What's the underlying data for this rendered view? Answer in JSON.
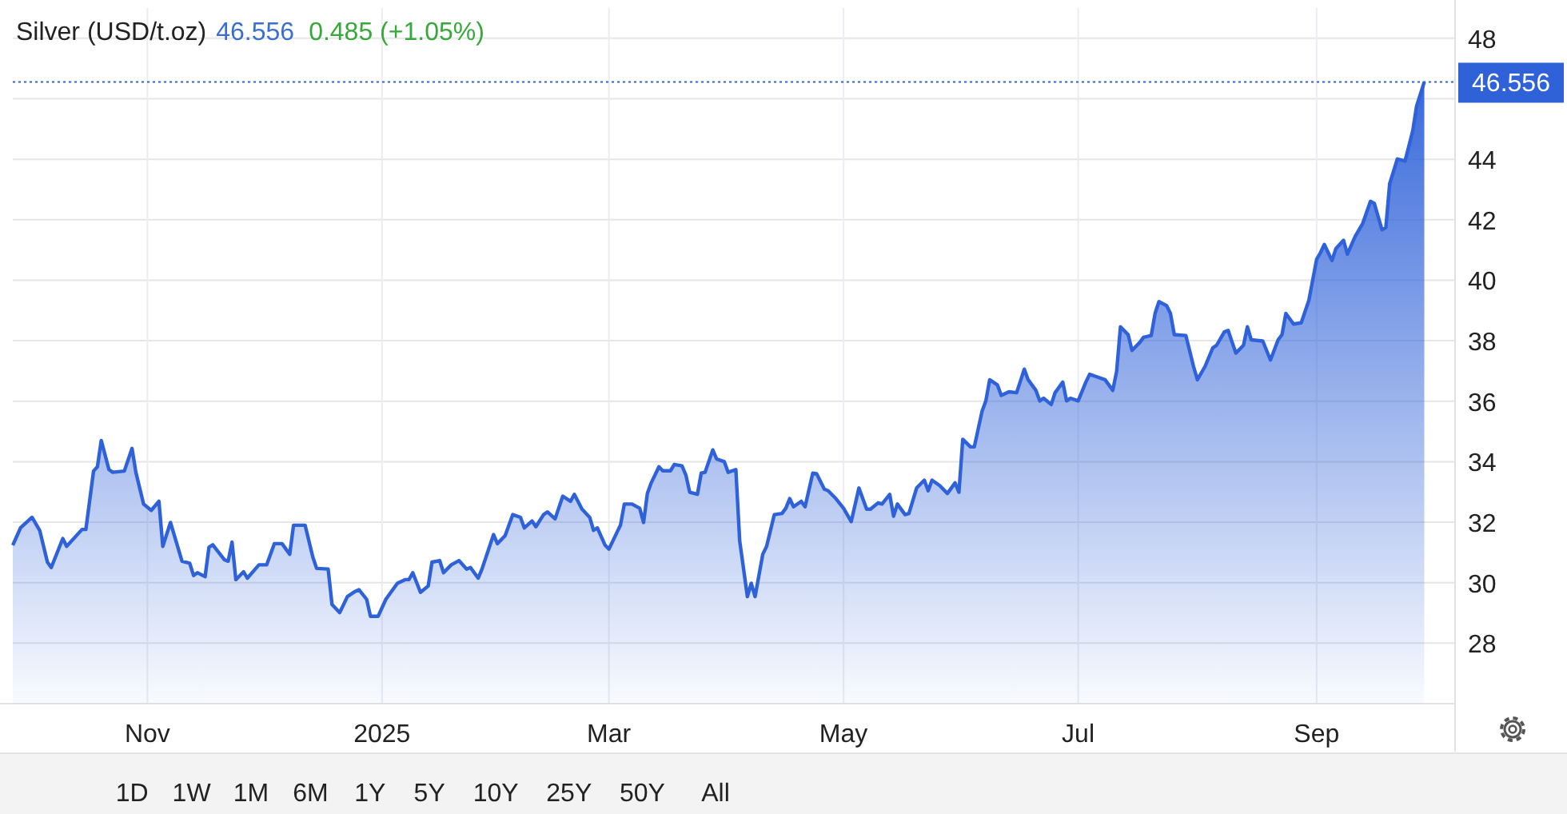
{
  "chart_data": {
    "type": "area",
    "title": "Silver (USD/t.oz)",
    "annotations": [
      "46.556",
      "0.485 (+1.05%)",
      "1D",
      "1W",
      "1M",
      "6M",
      "1Y",
      "5Y",
      "10Y",
      "25Y",
      "50Y",
      "All"
    ],
    "x": [
      "2024-09-27",
      "2024-09-29",
      "2024-10-02",
      "2024-10-04",
      "2024-10-06",
      "2024-10-07",
      "2024-10-10",
      "2024-10-11",
      "2024-10-15",
      "2024-10-16",
      "2024-10-18",
      "2024-10-19",
      "2024-10-20",
      "2024-10-22",
      "2024-10-23",
      "2024-10-26",
      "2024-10-28",
      "2024-10-29",
      "2024-10-31",
      "2024-11-02",
      "2024-11-04",
      "2024-11-05",
      "2024-11-07",
      "2024-11-10",
      "2024-11-12",
      "2024-11-13",
      "2024-11-14",
      "2024-11-16",
      "2024-11-17",
      "2024-11-18",
      "2024-11-21",
      "2024-11-22",
      "2024-11-23",
      "2024-11-24",
      "2024-11-26",
      "2024-11-27",
      "2024-11-30",
      "2024-12-02",
      "2024-12-04",
      "2024-12-06",
      "2024-12-08",
      "2024-12-09",
      "2024-12-12",
      "2024-12-14",
      "2024-12-15",
      "2024-12-18",
      "2024-12-19",
      "2024-12-21",
      "2024-12-23",
      "2024-12-25",
      "2024-12-26",
      "2024-12-28",
      "2024-12-29",
      "2024-12-31",
      "2025-01-02",
      "2025-01-03",
      "2025-01-05",
      "2025-01-07",
      "2025-01-08",
      "2025-01-09",
      "2025-01-11",
      "2025-01-13",
      "2025-01-14",
      "2025-01-16",
      "2025-01-17",
      "2025-01-19",
      "2025-01-21",
      "2025-01-23",
      "2025-01-24",
      "2025-01-26",
      "2025-01-27",
      "2025-01-30",
      "2025-01-31",
      "2025-02-02",
      "2025-02-04",
      "2025-02-06",
      "2025-02-07",
      "2025-02-09",
      "2025-02-10",
      "2025-02-12",
      "2025-02-13",
      "2025-02-15",
      "2025-02-17",
      "2025-02-19",
      "2025-02-20",
      "2025-02-22",
      "2025-02-24",
      "2025-02-25",
      "2025-02-26",
      "2025-02-28",
      "2025-03-01",
      "2025-03-03",
      "2025-03-04",
      "2025-03-05",
      "2025-03-07",
      "2025-03-09",
      "2025-03-10",
      "2025-03-11",
      "2025-03-12",
      "2025-03-14",
      "2025-03-15",
      "2025-03-17",
      "2025-03-18",
      "2025-03-20",
      "2025-03-21",
      "2025-03-22",
      "2025-03-24",
      "2025-03-25",
      "2025-03-26",
      "2025-03-28",
      "2025-03-29",
      "2025-03-31",
      "2025-04-01",
      "2025-04-03",
      "2025-04-04",
      "2025-04-06",
      "2025-04-07",
      "2025-04-08",
      "2025-04-10",
      "2025-04-11",
      "2025-04-13",
      "2025-04-15",
      "2025-04-16",
      "2025-04-17",
      "2025-04-18",
      "2025-04-20",
      "2025-04-21",
      "2025-04-23",
      "2025-04-24",
      "2025-04-26",
      "2025-04-27",
      "2025-04-29",
      "2025-05-01",
      "2025-05-03",
      "2025-05-05",
      "2025-05-07",
      "2025-05-08",
      "2025-05-10",
      "2025-05-11",
      "2025-05-13",
      "2025-05-14",
      "2025-05-15",
      "2025-05-17",
      "2025-05-18",
      "2025-05-20",
      "2025-05-22",
      "2025-05-23",
      "2025-05-24",
      "2025-05-26",
      "2025-05-28",
      "2025-05-30",
      "2025-05-31",
      "2025-06-01",
      "2025-06-03",
      "2025-06-04",
      "2025-06-06",
      "2025-06-07",
      "2025-06-08",
      "2025-06-10",
      "2025-06-11",
      "2025-06-13",
      "2025-06-15",
      "2025-06-17",
      "2025-06-18",
      "2025-06-20",
      "2025-06-21",
      "2025-06-22",
      "2025-06-24",
      "2025-06-25",
      "2025-06-27",
      "2025-06-28",
      "2025-06-29",
      "2025-07-01",
      "2025-07-03",
      "2025-07-04",
      "2025-07-06",
      "2025-07-08",
      "2025-07-10",
      "2025-07-11",
      "2025-07-12",
      "2025-07-14",
      "2025-07-15",
      "2025-07-17",
      "2025-07-18",
      "2025-07-20",
      "2025-07-21",
      "2025-07-22",
      "2025-07-24",
      "2025-07-25",
      "2025-07-26",
      "2025-07-29",
      "2025-07-31",
      "2025-08-01",
      "2025-08-03",
      "2025-08-05",
      "2025-08-06",
      "2025-08-08",
      "2025-08-09",
      "2025-08-11",
      "2025-08-13",
      "2025-08-14",
      "2025-08-15",
      "2025-08-18",
      "2025-08-20",
      "2025-08-22",
      "2025-08-23",
      "2025-08-24",
      "2025-08-26",
      "2025-08-28",
      "2025-08-30",
      "2025-09-01",
      "2025-09-02",
      "2025-09-03",
      "2025-09-05",
      "2025-09-06",
      "2025-09-08",
      "2025-09-09",
      "2025-09-11",
      "2025-09-13",
      "2025-09-15",
      "2025-09-16",
      "2025-09-18",
      "2025-09-19",
      "2025-09-20",
      "2025-09-22",
      "2025-09-24",
      "2025-09-26",
      "2025-09-27",
      "2025-09-29"
    ],
    "series": [
      {
        "color": "#2f62d9",
        "values": [
          31.24,
          31.81,
          32.16,
          31.73,
          30.68,
          30.5,
          31.46,
          31.2,
          31.76,
          31.76,
          33.69,
          33.83,
          34.7,
          33.74,
          33.65,
          33.69,
          34.44,
          33.65,
          32.6,
          32.39,
          32.69,
          31.2,
          31.99,
          30.71,
          30.64,
          30.24,
          30.33,
          30.2,
          31.17,
          31.25,
          30.76,
          30.71,
          31.34,
          30.1,
          30.36,
          30.15,
          30.59,
          30.59,
          31.29,
          31.29,
          30.94,
          31.9,
          31.9,
          30.85,
          30.47,
          30.45,
          29.28,
          29.01,
          29.54,
          29.71,
          29.77,
          29.45,
          28.89,
          28.89,
          29.45,
          29.63,
          29.98,
          30.1,
          30.1,
          30.33,
          29.68,
          29.89,
          30.68,
          30.73,
          30.33,
          30.59,
          30.73,
          30.45,
          30.5,
          30.15,
          30.45,
          31.59,
          31.29,
          31.55,
          32.25,
          32.16,
          31.81,
          32.04,
          31.85,
          32.25,
          32.34,
          32.11,
          32.86,
          32.69,
          32.92,
          32.43,
          32.16,
          31.73,
          31.81,
          31.24,
          31.11,
          31.64,
          31.9,
          32.6,
          32.6,
          32.46,
          31.99,
          32.95,
          33.3,
          33.83,
          33.7,
          33.7,
          33.91,
          33.86,
          33.56,
          32.99,
          32.92,
          33.62,
          33.65,
          34.39,
          34.09,
          34.0,
          33.65,
          33.74,
          31.38,
          29.54,
          29.98,
          29.54,
          30.94,
          31.2,
          32.25,
          32.29,
          32.46,
          32.78,
          32.51,
          32.69,
          32.51,
          33.62,
          33.6,
          33.09,
          33.04,
          32.78,
          32.46,
          32.02,
          33.13,
          32.43,
          32.43,
          32.64,
          32.6,
          32.92,
          32.2,
          32.6,
          32.25,
          32.29,
          33.13,
          33.39,
          33.04,
          33.39,
          33.21,
          32.95,
          33.3,
          32.99,
          34.74,
          34.49,
          34.49,
          35.66,
          36.01,
          36.71,
          36.54,
          36.19,
          36.31,
          36.28,
          37.06,
          36.71,
          36.36,
          36.01,
          36.1,
          35.89,
          36.28,
          36.63,
          36.01,
          36.1,
          36.01,
          36.63,
          36.89,
          36.8,
          36.71,
          36.36,
          36.98,
          38.46,
          38.2,
          37.68,
          37.94,
          38.11,
          38.17,
          38.9,
          39.29,
          39.16,
          38.9,
          38.2,
          38.17,
          37.15,
          36.71,
          37.15,
          37.76,
          37.85,
          38.29,
          38.34,
          37.59,
          37.85,
          38.46,
          38.03,
          37.99,
          37.36,
          38.03,
          38.2,
          38.9,
          38.55,
          38.59,
          39.34,
          40.69,
          40.91,
          41.18,
          40.65,
          41.04,
          41.32,
          40.86,
          41.44,
          41.88,
          42.61,
          42.54,
          41.67,
          41.74,
          43.19,
          44.01,
          43.94,
          44.94,
          45.76,
          46.556
        ]
      }
    ],
    "xlim": [
      "2024-09-27",
      "2025-10-07"
    ],
    "xticks": [
      {
        "value": "2024-11-01",
        "label": "Nov"
      },
      {
        "value": "2025-01-01",
        "label": "2025"
      },
      {
        "value": "2025-03-01",
        "label": "Mar"
      },
      {
        "value": "2025-05-01",
        "label": "May"
      },
      {
        "value": "2025-07-01",
        "label": "Jul"
      },
      {
        "value": "2025-09-01",
        "label": "Sep"
      }
    ],
    "ylim": [
      26,
      49
    ],
    "yticks": [
      28,
      30,
      32,
      34,
      36,
      38,
      40,
      42,
      44,
      {
        "value": 46,
        "label": null
      },
      48
    ],
    "ref_lines": [
      {
        "axis": "y",
        "value": 46.556,
        "label": "46.556",
        "color": "#2f62d9",
        "line_style": "dotted"
      }
    ],
    "grid": true
  }
}
